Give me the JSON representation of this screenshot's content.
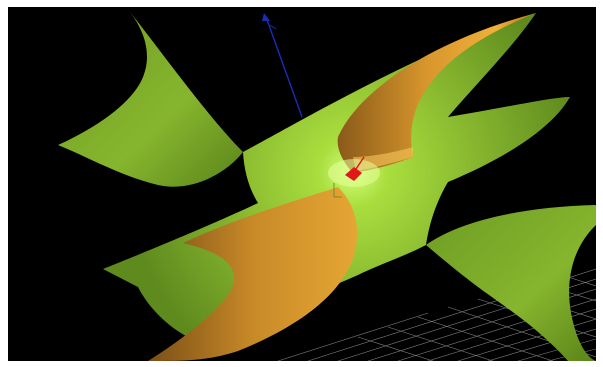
{
  "viewer": {
    "background_color": "#000000",
    "frame_color": "#ffffff",
    "surface_colors": {
      "outer": "#86b52e",
      "outer_light": "#a9de3e",
      "inner": "#c88a28",
      "inner_light": "#f0b03a"
    },
    "axis_colors": {
      "z": "#1a2db8",
      "x": "#e01818",
      "y": "#7a8a2a"
    },
    "grid_color": "#b8b8b8",
    "icons": {
      "axes": "axes-gizmo-icon",
      "grid": "floor-grid",
      "surface": "hyperbolic-surface"
    }
  }
}
